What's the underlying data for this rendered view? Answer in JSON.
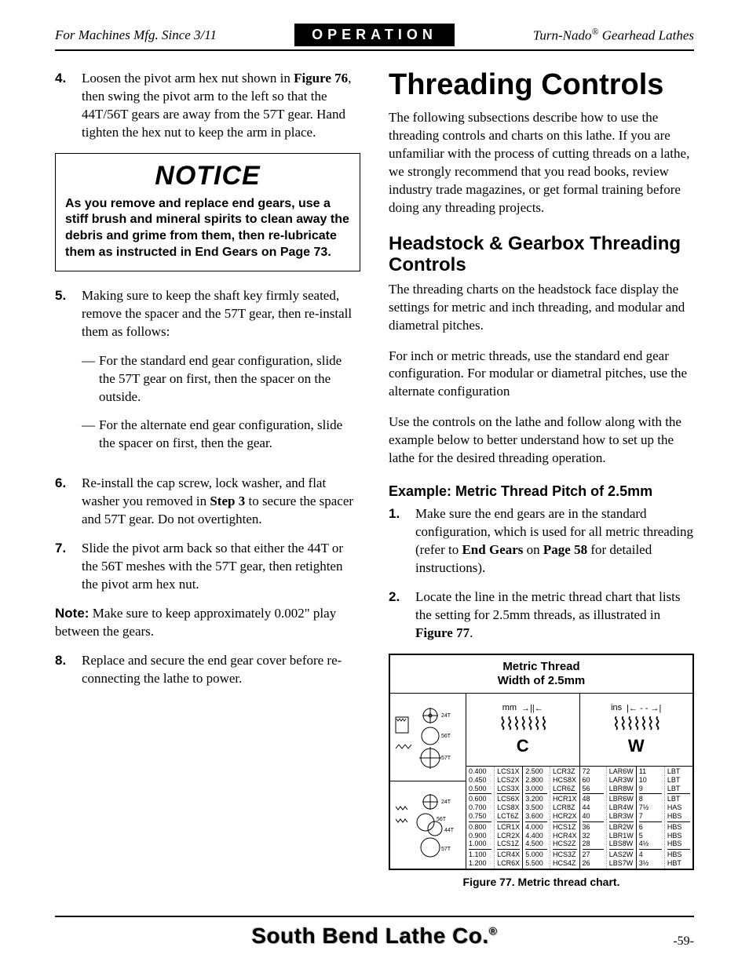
{
  "header": {
    "left": "For Machines Mfg. Since 3/11",
    "center": "OPERATION",
    "right_pre": "Turn-Nado",
    "right_reg": "®",
    "right_post": " Gearhead Lathes"
  },
  "left_col": {
    "step4": {
      "num": "4.",
      "pre": "Loosen the pivot arm hex nut shown in ",
      "fig": "Figure 76",
      "post": ", then swing the pivot arm to the left so that the 44T/56T gears are away from the 57T gear. Hand tighten the hex nut to keep the arm in place."
    },
    "notice": {
      "title": "NOTICE",
      "body": "As you remove and replace end gears, use a stiff brush and mineral spirits to clean away the debris and grime from them, then re-lubricate them as instructed in End Gears on Page 73."
    },
    "step5": {
      "num": "5.",
      "body": "Making sure to keep the shaft key firmly seated, remove the spacer and the 57T gear, then re-install them as follows:",
      "sub1": "For the standard end gear configuration, slide the 57T gear on first, then the spacer on the outside.",
      "sub2": "For the alternate end gear configuration, slide the spacer on first, then the gear."
    },
    "step6": {
      "num": "6.",
      "pre": "Re-install the cap screw, lock washer, and flat washer you removed in ",
      "bold": "Step 3",
      "post": " to secure the spacer and 57T gear. Do not overtighten."
    },
    "step7": {
      "num": "7.",
      "body": "Slide the pivot arm back so that either the 44T or the 56T meshes with the 57T gear, then retighten the pivot arm hex nut."
    },
    "note": {
      "label": "Note:",
      "body": " Make sure to keep approximately 0.002\" play between the gears."
    },
    "step8": {
      "num": "8.",
      "body": "Replace and secure the end gear cover before re-connecting the lathe to power."
    }
  },
  "right_col": {
    "h1": "Threading Controls",
    "intro": "The following subsections describe how to use the threading controls and charts on this lathe. If you are unfamiliar with the process of cutting threads on a lathe, we strongly recommend that you read books, review industry trade magazines, or get formal training before doing any threading projects.",
    "h2": "Headstock & Gearbox Threading Controls",
    "p1": "The threading charts on the headstock face display the settings for metric and inch threading, and modular and diametral pitches.",
    "p2": "For inch or metric threads, use the standard end gear configuration. For modular or diametral pitches, use the alternate configuration",
    "p3": "Use the controls on the lathe and follow along with the example below to better understand how to set up the lathe for the desired threading operation.",
    "h3": "Example: Metric Thread Pitch of 2.5mm",
    "ex1": {
      "num": "1.",
      "pre": "Make sure the end gears are in the standard configuration, which is used for all metric threading (refer to ",
      "b1": "End Gears",
      "mid": " on ",
      "b2": "Page 58",
      "post": " for detailed instructions)."
    },
    "ex2": {
      "num": "2.",
      "pre": "Locate the line in the metric thread chart that lists the setting for 2.5mm threads, as illustrated in ",
      "fig": "Figure 77",
      "post": "."
    }
  },
  "chart": {
    "title_l1": "Metric Thread",
    "title_l2": "Width of 2.5mm",
    "mm_label": "mm",
    "ins_label": "ins",
    "c_letter": "C",
    "w_letter": "W",
    "gear_labels": {
      "t24": "24T",
      "t56": "56T",
      "t57": "57T",
      "t44": "44T"
    },
    "mm_cols": [
      [
        {
          "v": "0.400",
          "c": "LCS1X"
        },
        {
          "v": "0.450",
          "c": "LCS2X"
        },
        {
          "v": "0.500",
          "c": "LCS3X"
        },
        {
          "v": "0.600",
          "c": "LCS6X",
          "sep": true
        },
        {
          "v": "0.700",
          "c": "LCS8X"
        },
        {
          "v": "0.750",
          "c": "LCT6Z"
        },
        {
          "v": "0.800",
          "c": "LCR1X",
          "sep": true
        },
        {
          "v": "0.900",
          "c": "LCR2X"
        },
        {
          "v": "1.000",
          "c": "LCS1Z"
        },
        {
          "v": "1.100",
          "c": "LCR4X",
          "sep": true
        },
        {
          "v": "1.200",
          "c": "LCR6X"
        }
      ],
      [
        {
          "v": "2.500",
          "c": "LCR3Z"
        },
        {
          "v": "2.800",
          "c": "HCS8X"
        },
        {
          "v": "3.000",
          "c": "LCR6Z"
        },
        {
          "v": "3.200",
          "c": "HCR1X",
          "sep": true
        },
        {
          "v": "3.500",
          "c": "LCR8Z"
        },
        {
          "v": "3.600",
          "c": "HCR2X"
        },
        {
          "v": "4.000",
          "c": "HCS1Z",
          "sep": true
        },
        {
          "v": "4.400",
          "c": "HCR4X"
        },
        {
          "v": "4.500",
          "c": "HCS2Z"
        },
        {
          "v": "5.000",
          "c": "HCS3Z",
          "sep": true
        },
        {
          "v": "5.500",
          "c": "HCS4Z"
        }
      ]
    ],
    "ins_cols": [
      [
        {
          "v": "72",
          "c": "LAR6W"
        },
        {
          "v": "60",
          "c": "LAR3W"
        },
        {
          "v": "56",
          "c": "LBR8W"
        },
        {
          "v": "48",
          "c": "LBR6W",
          "sep": true
        },
        {
          "v": "44",
          "c": "LBR4W"
        },
        {
          "v": "40",
          "c": "LBR3W"
        },
        {
          "v": "36",
          "c": "LBR2W",
          "sep": true
        },
        {
          "v": "32",
          "c": "LBR1W"
        },
        {
          "v": "28",
          "c": "LBS8W"
        },
        {
          "v": "27",
          "c": "LAS2W",
          "sep": true
        },
        {
          "v": "26",
          "c": "LBS7W"
        }
      ],
      [
        {
          "v": "11",
          "c": "LBT"
        },
        {
          "v": "10",
          "c": "LBT"
        },
        {
          "v": "9",
          "c": "LBT"
        },
        {
          "v": "8",
          "c": "LBT",
          "sep": true
        },
        {
          "v": "7½",
          "c": "HAS"
        },
        {
          "v": "7",
          "c": "HBS"
        },
        {
          "v": "6",
          "c": "HBS",
          "sep": true
        },
        {
          "v": "5",
          "c": "HBS"
        },
        {
          "v": "4½",
          "c": "HBS"
        },
        {
          "v": "4",
          "c": "HBS",
          "sep": true
        },
        {
          "v": "3½",
          "c": "HBT"
        }
      ]
    ],
    "caption": "Figure 77. Metric thread chart."
  },
  "footer": {
    "logo_pre": "South Bend Lathe Co.",
    "reg": "®",
    "page": "-59-"
  }
}
